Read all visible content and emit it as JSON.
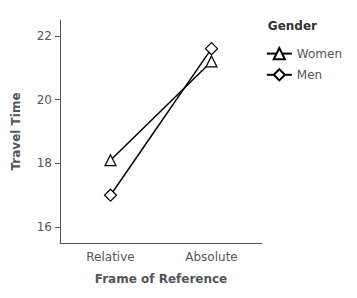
{
  "chart_data": {
    "type": "line",
    "categories": [
      "Relative",
      "Absolute"
    ],
    "series": [
      {
        "name": "Women",
        "color": "black",
        "marker": "triangle",
        "values": [
          18.1,
          21.2
        ]
      },
      {
        "name": "Men",
        "color": "black",
        "marker": "diamond",
        "values": [
          17.0,
          21.6
        ]
      }
    ],
    "xlabel": "Frame of Reference",
    "ylabel": "Travel Time",
    "legend_title": "Gender",
    "legend": "right",
    "ylim": [
      15.5,
      22.5
    ],
    "yticks": [
      16,
      18,
      20,
      22
    ],
    "grid": false
  }
}
